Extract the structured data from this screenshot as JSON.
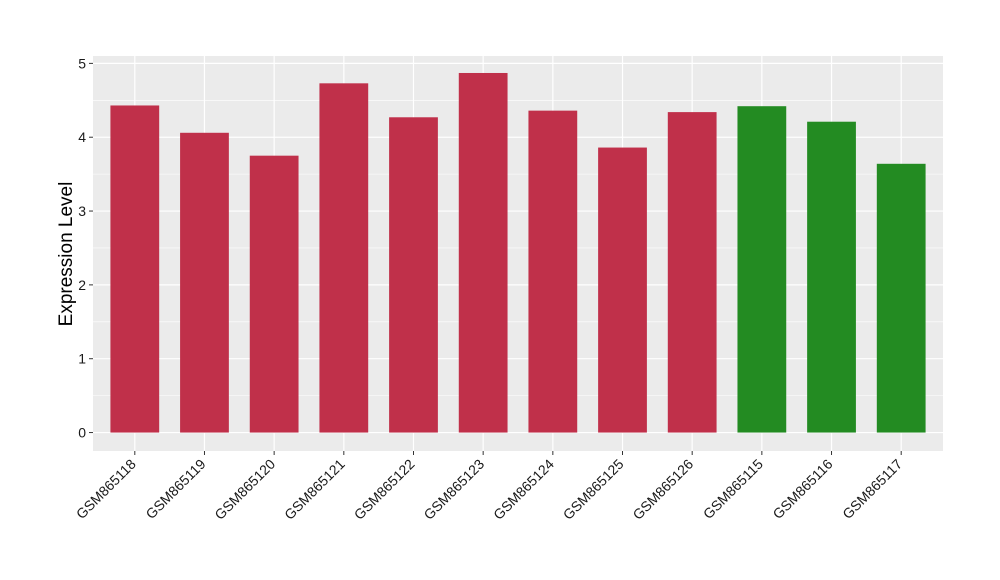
{
  "chart_data": {
    "type": "bar",
    "title": "",
    "xlabel": "",
    "ylabel": "Expression Level",
    "ylim": [
      -0.25,
      5.1
    ],
    "yticks": [
      0,
      1,
      2,
      3,
      4,
      5
    ],
    "grid": true,
    "legend": "none",
    "categories": [
      "GSM865118",
      "GSM865119",
      "GSM865120",
      "GSM865121",
      "GSM865122",
      "GSM865123",
      "GSM865124",
      "GSM865125",
      "GSM865126",
      "GSM865115",
      "GSM865116",
      "GSM865117"
    ],
    "values": [
      4.43,
      4.06,
      3.75,
      4.73,
      4.27,
      4.87,
      4.36,
      3.86,
      4.34,
      4.42,
      4.21,
      3.64
    ],
    "groups": [
      "a",
      "a",
      "a",
      "a",
      "a",
      "a",
      "a",
      "a",
      "a",
      "b",
      "b",
      "b"
    ],
    "colors": {
      "a": "#c0304a",
      "b": "#238b22"
    },
    "panel_background": "#ebebeb",
    "gridline_color": "#ffffff"
  }
}
